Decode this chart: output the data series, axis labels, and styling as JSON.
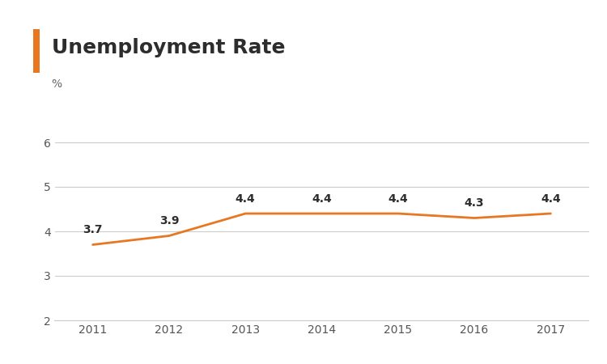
{
  "title": "Unemployment Rate",
  "ylabel": "%",
  "years": [
    2011,
    2012,
    2013,
    2014,
    2015,
    2016,
    2017
  ],
  "values": [
    3.7,
    3.9,
    4.4,
    4.4,
    4.4,
    4.3,
    4.4
  ],
  "line_color": "#E87722",
  "title_color": "#2d2d2d",
  "label_color": "#2d2d2d",
  "accent_bar_color": "#E87722",
  "background_color": "#ffffff",
  "grid_color": "#cccccc",
  "ylim": [
    2,
    6.5
  ],
  "yticks": [
    2,
    3,
    4,
    5,
    6
  ],
  "title_fontsize": 18,
  "ylabel_fontsize": 10,
  "annotation_fontsize": 10,
  "tick_fontsize": 10,
  "line_width": 2.0
}
